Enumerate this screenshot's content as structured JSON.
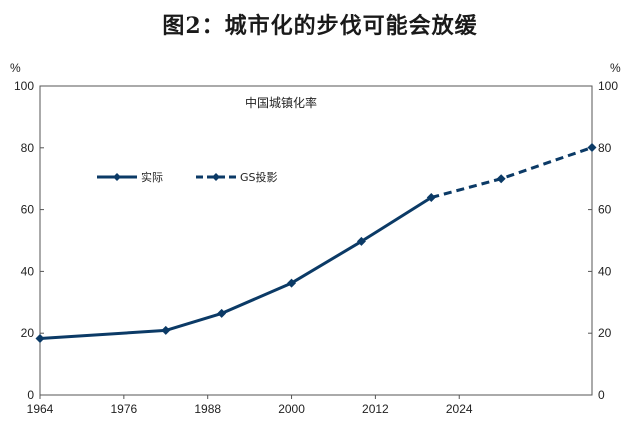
{
  "chart_data": {
    "type": "line",
    "title": "图2：城市化的步伐可能会放缓",
    "subtitle": "中国城镇化率",
    "ylabel_left": "%",
    "ylabel_right": "%",
    "xlabel": "",
    "x_ticks": [
      1964,
      1976,
      1988,
      2000,
      2012,
      2024
    ],
    "xlim": [
      1964,
      2043
    ],
    "ylim": [
      0,
      100
    ],
    "y_ticks": [
      0,
      20,
      40,
      60,
      80,
      100
    ],
    "grid": false,
    "legend_position": "upper-left",
    "series": [
      {
        "name": "实际",
        "style": "solid",
        "color": "#0b3a66",
        "points": [
          [
            1964,
            18.3
          ],
          [
            1982,
            20.9
          ],
          [
            1990,
            26.4
          ],
          [
            2000,
            36.2
          ],
          [
            2010,
            49.7
          ],
          [
            2020,
            63.9
          ]
        ]
      },
      {
        "name": "GS投影",
        "style": "dashed",
        "color": "#0b3a66",
        "points": [
          [
            2020,
            63.9
          ],
          [
            2030,
            70.0
          ],
          [
            2043,
            80.1
          ]
        ]
      }
    ]
  }
}
